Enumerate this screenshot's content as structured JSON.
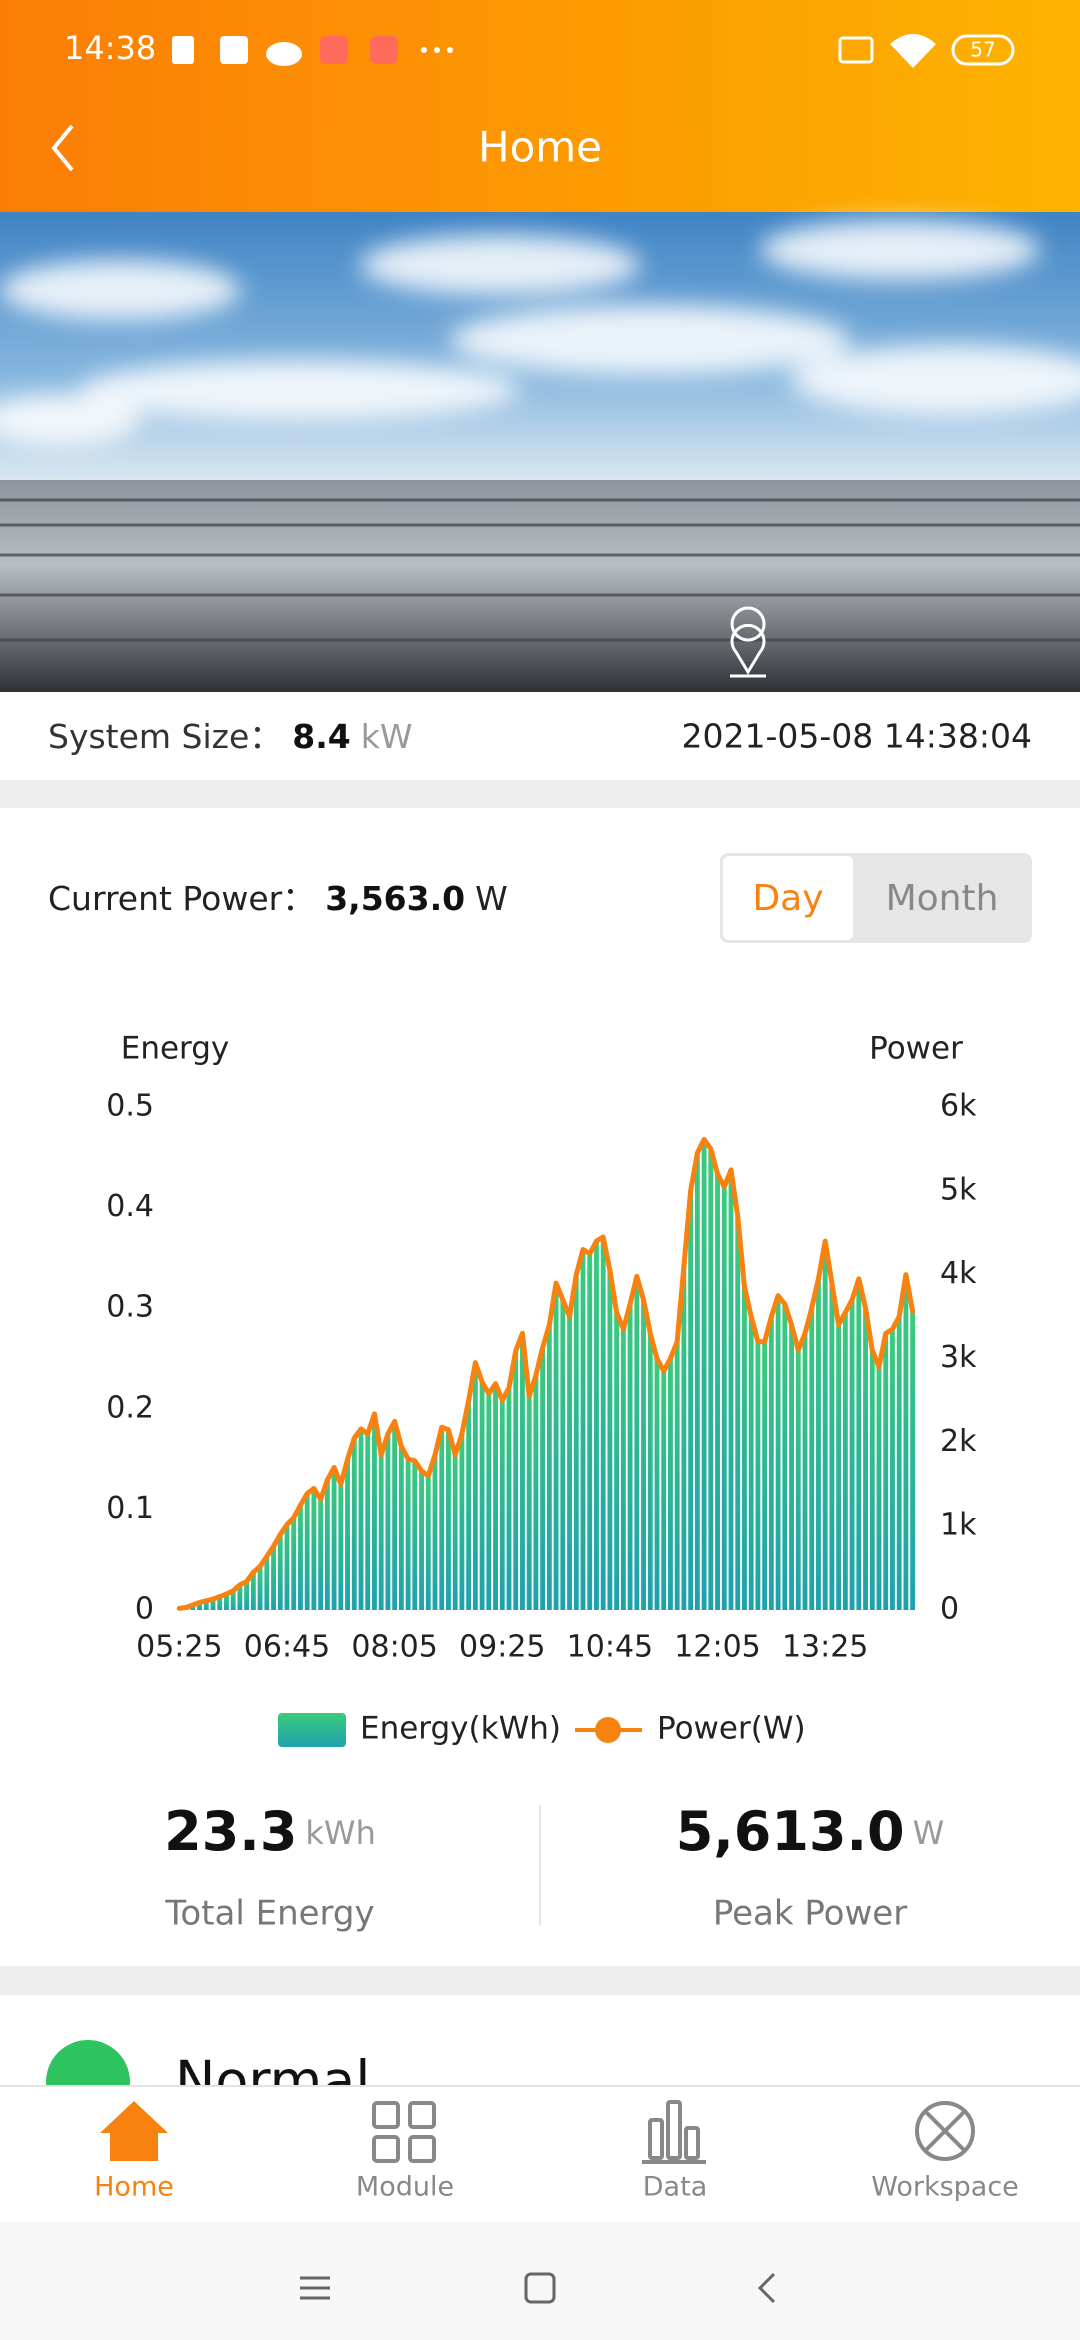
{
  "status_bar": {
    "time": "14:38",
    "battery": "57"
  },
  "header": {
    "title": "Home"
  },
  "system": {
    "size_label": "System Size：",
    "size_value": "8.4",
    "size_unit": "kW",
    "datetime": "2021-05-08 14:38:04"
  },
  "power": {
    "label": "Current Power：",
    "value": "3,563.0",
    "unit": "W"
  },
  "toggle": {
    "options": [
      "Day",
      "Month"
    ],
    "selected": 0
  },
  "chart_data": {
    "type": "combo",
    "y_label": "Energy",
    "y2_label": "Power",
    "categories": [
      "05:25",
      null,
      null,
      null,
      null,
      null,
      null,
      null,
      null,
      null,
      null,
      null,
      null,
      null,
      null,
      null,
      "06:45",
      null,
      null,
      null,
      null,
      null,
      null,
      null,
      null,
      null,
      null,
      null,
      null,
      null,
      null,
      null,
      "08:05",
      null,
      null,
      null,
      null,
      null,
      null,
      null,
      null,
      null,
      null,
      null,
      null,
      null,
      null,
      null,
      "09:25",
      null,
      null,
      null,
      null,
      null,
      null,
      null,
      null,
      null,
      null,
      null,
      null,
      null,
      null,
      null,
      "10:45",
      null,
      null,
      null,
      null,
      null,
      null,
      null,
      null,
      null,
      null,
      null,
      null,
      null,
      null,
      null,
      "12:05",
      null,
      null,
      null,
      null,
      null,
      null,
      null,
      null,
      null,
      null,
      null,
      null,
      null,
      null,
      null,
      "13:25",
      null,
      null,
      null,
      null,
      null,
      null,
      null,
      null,
      null,
      null,
      null,
      null,
      null
    ],
    "series": [
      {
        "name": "Energy(kWh)",
        "type": "bar",
        "color": "#3ccb7c",
        "values": [
          0.002,
          0.003,
          0.005,
          0.008,
          0.009,
          0.011,
          0.013,
          0.016,
          0.019,
          0.025,
          0.028,
          0.038,
          0.043,
          0.053,
          0.063,
          0.075,
          0.085,
          0.092,
          0.104,
          0.116,
          0.121,
          0.11,
          0.129,
          0.142,
          0.125,
          0.15,
          0.171,
          0.18,
          0.175,
          0.195,
          0.154,
          0.175,
          0.188,
          0.163,
          0.15,
          0.148,
          0.138,
          0.133,
          0.154,
          0.182,
          0.179,
          0.154,
          0.175,
          0.208,
          0.246,
          0.227,
          0.215,
          0.225,
          0.208,
          0.221,
          0.258,
          0.275,
          0.213,
          0.233,
          0.261,
          0.283,
          0.325,
          0.308,
          0.292,
          0.333,
          0.358,
          0.354,
          0.367,
          0.371,
          0.338,
          0.296,
          0.279,
          0.304,
          0.332,
          0.308,
          0.275,
          0.25,
          0.238,
          0.25,
          0.267,
          0.342,
          0.417,
          0.454,
          0.468,
          0.458,
          0.433,
          0.421,
          0.438,
          0.392,
          0.321,
          0.292,
          0.267,
          0.267,
          0.292,
          0.313,
          0.304,
          0.283,
          0.258,
          0.275,
          0.3,
          0.329,
          0.367,
          0.325,
          0.283,
          0.296,
          0.308,
          0.329,
          0.3,
          0.258,
          0.242,
          0.275,
          0.279,
          0.292,
          0.333,
          0.297
        ]
      },
      {
        "name": "Power(W)",
        "type": "line",
        "axis": "y2",
        "color": "#f7820f",
        "values": [
          20,
          30,
          60,
          90,
          110,
          130,
          160,
          190,
          230,
          300,
          340,
          450,
          520,
          640,
          760,
          900,
          1020,
          1100,
          1250,
          1390,
          1450,
          1320,
          1550,
          1700,
          1500,
          1800,
          2050,
          2160,
          2100,
          2340,
          1850,
          2100,
          2250,
          1950,
          1800,
          1780,
          1660,
          1600,
          1850,
          2180,
          2150,
          1850,
          2100,
          2500,
          2950,
          2720,
          2580,
          2700,
          2500,
          2650,
          3090,
          3300,
          2550,
          2800,
          3130,
          3400,
          3900,
          3700,
          3500,
          4000,
          4300,
          4250,
          4400,
          4450,
          4050,
          3550,
          3350,
          3650,
          3980,
          3700,
          3300,
          3000,
          2850,
          3000,
          3200,
          4100,
          5000,
          5450,
          5613,
          5500,
          5200,
          5050,
          5250,
          4700,
          3850,
          3500,
          3200,
          3200,
          3500,
          3750,
          3650,
          3400,
          3100,
          3300,
          3600,
          3950,
          4400,
          3900,
          3400,
          3550,
          3700,
          3950,
          3600,
          3100,
          2900,
          3300,
          3350,
          3500,
          4000,
          3563
        ]
      }
    ],
    "ylim": [
      0,
      0.5
    ],
    "yticks": [
      0,
      0.1,
      0.2,
      0.3,
      0.4,
      0.5
    ],
    "y2lim": [
      0,
      6000
    ],
    "y2ticks": [
      0,
      {
        "value": 1000,
        "label": "1k"
      },
      {
        "value": 2000,
        "label": "2k"
      },
      {
        "value": 3000,
        "label": "3k"
      },
      {
        "value": 4000,
        "label": "4k"
      },
      {
        "value": 5000,
        "label": "5k"
      },
      {
        "value": 6000,
        "label": "6k"
      }
    ],
    "grid": false,
    "legend": "bottom"
  },
  "summary": [
    {
      "value": "23.3",
      "unit": "kWh",
      "label": "Total Energy"
    },
    {
      "value": "5,613.0",
      "unit": "W",
      "label": "Peak Power"
    }
  ],
  "status": {
    "label": "Normal"
  },
  "nav": {
    "items": [
      "Home",
      "Module",
      "Data",
      "Workspace"
    ],
    "active": 0
  }
}
